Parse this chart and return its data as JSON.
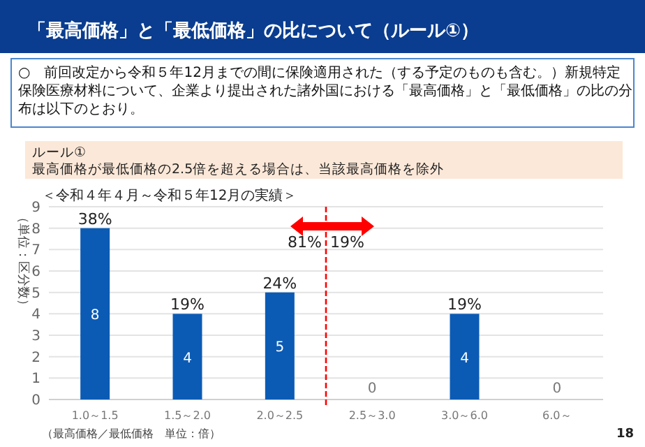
{
  "chart_data": {
    "type": "bar",
    "title": "「最高価格」と「最低価格」の比について（ルール①）",
    "subtitle": "＜令和４年４月～令和５年12月の実績＞",
    "ylabel": "（単位：区分数）",
    "xlabel": "（最高価格／最低価格　単位：倍）",
    "categories": [
      "1.0～1.5",
      "1.5～2.0",
      "2.0～2.5",
      "2.5～3.0",
      "3.0～6.0",
      "6.0～"
    ],
    "values": [
      8,
      4,
      5,
      0,
      4,
      0
    ],
    "data_labels": true,
    "color": "#0b5bb5",
    "ylim": [
      0,
      9
    ],
    "yticks": [
      0,
      1,
      2,
      3,
      4,
      5,
      6,
      7,
      8,
      9
    ],
    "grid": "y",
    "annotations": [
      "○　前回改定から令和５年12月までの間に保険適用された（する予定のものも含む。）新規特定保険医療材料について、企業より提出された諸外国における「最高価格」と「最低価格」の比の分布は以下のとおり。",
      "ルール①",
      "最高価格が最低価格の2.5倍を超える場合は、当該最高価格を除外",
      "81%",
      "19%",
      "18",
      {
        "text": "38%",
        "x": "1.0～1.5",
        "y": 8
      },
      {
        "text": "19%",
        "x": "1.5～2.0",
        "y": 4
      },
      {
        "text": "24%",
        "x": "2.0～2.5",
        "y": 5
      },
      {
        "text": "19%",
        "x": "3.0～6.0",
        "y": 4
      }
    ]
  }
}
